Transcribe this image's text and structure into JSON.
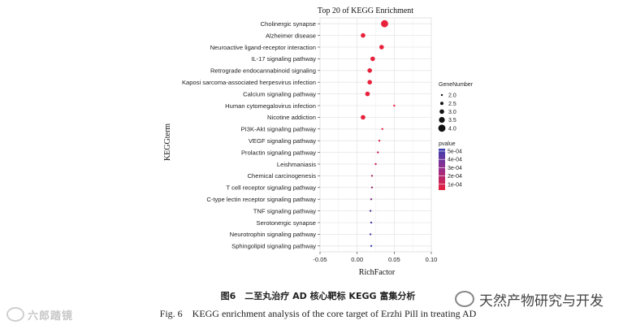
{
  "figure": {
    "caption_zh": "图6　二至丸治疗 AD 核心靶标 KEGG 富集分析",
    "caption_en": "Fig. 6　KEGG enrichment analysis of the core target of Erzhi Pill in treating AD",
    "watermark_left": "六郎踏镜",
    "watermark_right": "天然产物研究与开发"
  },
  "chart_data": {
    "type": "scatter",
    "title": "Top 20 of KEGG Enrichment",
    "xlabel": "RichFactor",
    "ylabel": "KEGGterm",
    "xlim": [
      -0.05,
      0.1
    ],
    "xticks": [
      -0.05,
      0.0,
      0.05,
      0.1
    ],
    "xtick_labels": [
      "-0.05",
      "0.00",
      "0.05",
      "0.10"
    ],
    "grid": true,
    "categories": [
      "Cholinergic synapse",
      "Alzheimer disease",
      "Neuroactive ligand-receptor interaction",
      "IL-17 signaling pathway",
      "Retrograde endocannabinoid signaling",
      "Kaposi sarcoma-associated herpesvirus infection",
      "Calcium signaling pathway",
      "Human cytomegalovirus infection",
      "Nicotine addiction",
      "PI3K-Akt signaling pathway",
      "VEGF signaling pathway",
      "Prolactin signaling pathway",
      "Leishmaniasis",
      "Chemical carcinogenesis",
      "T cell receptor signaling pathway",
      "C-type lectin receptor signaling pathway",
      "TNF signaling pathway",
      "Serotonergic synapse",
      "Neurotrophin signaling pathway",
      "Sphingolipid signaling pathway"
    ],
    "richfactor": [
      0.037,
      0.008,
      0.033,
      0.021,
      0.017,
      0.017,
      0.014,
      0.05,
      0.008,
      0.034,
      0.03,
      0.028,
      0.025,
      0.02,
      0.02,
      0.019,
      0.018,
      0.019,
      0.018,
      0.019
    ],
    "gene_number": [
      4,
      3,
      3,
      3,
      3,
      3,
      3,
      2,
      3,
      2,
      2,
      2,
      2,
      2,
      2,
      2,
      2,
      2,
      2,
      2
    ],
    "pvalue": [
      5e-05,
      3e-05,
      6e-05,
      7e-05,
      8e-05,
      8e-05,
      9e-05,
      0.0001,
      8e-05,
      0.00013,
      0.00015,
      0.00017,
      0.00019,
      0.00025,
      0.00028,
      0.00035,
      0.00042,
      0.00045,
      0.00047,
      0.0005
    ],
    "size_legend": {
      "title": "GeneNumber",
      "values": [
        2.0,
        2.5,
        3.0,
        3.5,
        4.0
      ],
      "labels": [
        "2.0",
        "2.5",
        "3.0",
        "3.5",
        "4.0"
      ]
    },
    "color_legend": {
      "title": "pvalue",
      "range": [
        0.0001,
        0.0005
      ],
      "labels": [
        "5e-04",
        "4e-04",
        "3e-04",
        "2e-04",
        "1e-04"
      ],
      "color_low_p": "#e8213c",
      "color_high_p": "#3a3fb0"
    },
    "colors": {
      "grid": "#e6e6e6",
      "axis": "#333333"
    }
  }
}
